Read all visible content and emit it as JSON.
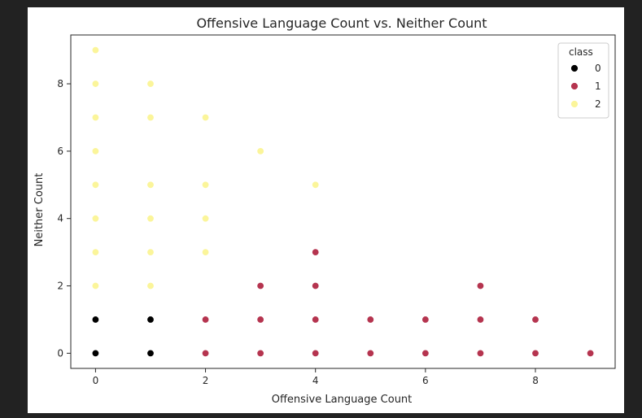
{
  "chart_data": {
    "type": "scatter",
    "title": "Offensive Language Count vs. Neither Count",
    "xlabel": "Offensive Language Count",
    "ylabel": "Neither Count",
    "xlim": [
      -0.45,
      9.45
    ],
    "ylim": [
      -0.45,
      9.45
    ],
    "xticks": [
      0,
      2,
      4,
      6,
      8
    ],
    "yticks": [
      0,
      2,
      4,
      6,
      8
    ],
    "grid": false,
    "legend": {
      "title": "class",
      "placement": "top-right"
    },
    "series": [
      {
        "name": "0",
        "color": "#000000",
        "points": [
          [
            0,
            0
          ],
          [
            0,
            1
          ],
          [
            1,
            0
          ],
          [
            1,
            1
          ]
        ]
      },
      {
        "name": "1",
        "color": "#b5344f",
        "points": [
          [
            2,
            0
          ],
          [
            2,
            1
          ],
          [
            3,
            0
          ],
          [
            3,
            1
          ],
          [
            3,
            2
          ],
          [
            4,
            0
          ],
          [
            4,
            1
          ],
          [
            4,
            2
          ],
          [
            4,
            3
          ],
          [
            5,
            0
          ],
          [
            5,
            1
          ],
          [
            6,
            0
          ],
          [
            6,
            1
          ],
          [
            7,
            0
          ],
          [
            7,
            1
          ],
          [
            7,
            2
          ],
          [
            8,
            0
          ],
          [
            8,
            1
          ],
          [
            9,
            0
          ]
        ]
      },
      {
        "name": "2",
        "color": "#fbf59a",
        "points": [
          [
            0,
            2
          ],
          [
            0,
            3
          ],
          [
            0,
            4
          ],
          [
            0,
            5
          ],
          [
            0,
            6
          ],
          [
            0,
            7
          ],
          [
            0,
            8
          ],
          [
            0,
            9
          ],
          [
            1,
            2
          ],
          [
            1,
            3
          ],
          [
            1,
            4
          ],
          [
            1,
            5
          ],
          [
            1,
            7
          ],
          [
            1,
            8
          ],
          [
            2,
            3
          ],
          [
            2,
            4
          ],
          [
            2,
            5
          ],
          [
            2,
            7
          ],
          [
            3,
            6
          ],
          [
            4,
            5
          ]
        ]
      }
    ]
  }
}
